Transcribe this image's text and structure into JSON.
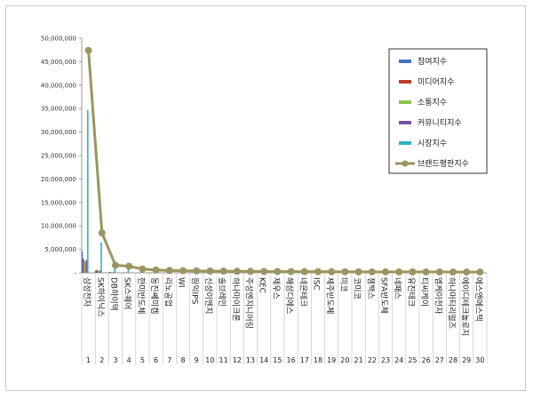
{
  "chart_data": {
    "type": "bar",
    "title": "",
    "xlabel": "",
    "ylabel": "",
    "ylim": [
      0,
      50000000
    ],
    "yticks": [
      0,
      5000000,
      10000000,
      15000000,
      20000000,
      25000000,
      30000000,
      35000000,
      40000000,
      45000000,
      50000000
    ],
    "ytick_labels": [
      "-",
      "5,000,000",
      "10,000,000",
      "15,000,000",
      "20,000,000",
      "25,000,000",
      "30,000,000",
      "35,000,000",
      "40,000,000",
      "45,000,000",
      "50,000,000"
    ],
    "grid": false,
    "legend_position": "right",
    "categories": [
      "삼성전자",
      "SK하이닉스",
      "DB하이텍",
      "SK스퀘어",
      "한미반도체",
      "동진쎄미켐",
      "리노공업",
      "WI",
      "원익IPS",
      "신성이엔지",
      "솔브레인",
      "하나마이크론",
      "주성엔지니어링",
      "KEC",
      "제우스",
      "해성디에스",
      "네온테크",
      "ISC",
      "제주반도체",
      "미코",
      "코미코",
      "젬백스",
      "SFA반도체",
      "네패스",
      "유진테크",
      "티씨케이",
      "엠케이전자",
      "하나머티리얼즈",
      "에이디테크놀로지",
      "에스앤에스텍"
    ],
    "category_numbers": [
      "1",
      "2",
      "3",
      "4",
      "5",
      "6",
      "7",
      "8",
      "9",
      "10",
      "11",
      "12",
      "13",
      "14",
      "15",
      "16",
      "17",
      "18",
      "19",
      "20",
      "21",
      "22",
      "23",
      "24",
      "25",
      "26",
      "27",
      "28",
      "29",
      "30"
    ],
    "series": [
      {
        "name": "참여지수",
        "kind": "bar",
        "color": "#4472c4",
        "values": [
          4600000,
          500000,
          150000,
          80000,
          50000,
          40000,
          30000,
          30000,
          30000,
          20000,
          20000,
          20000,
          20000,
          10000,
          10000,
          10000,
          10000,
          10000,
          10000,
          10000,
          10000,
          10000,
          10000,
          10000,
          10000,
          10000,
          10000,
          10000,
          10000,
          10000
        ]
      },
      {
        "name": "미디어지수",
        "kind": "bar",
        "color": "#c0392b",
        "values": [
          3000000,
          600000,
          200000,
          100000,
          60000,
          50000,
          40000,
          40000,
          40000,
          30000,
          30000,
          30000,
          30000,
          20000,
          20000,
          20000,
          20000,
          20000,
          20000,
          20000,
          20000,
          20000,
          20000,
          20000,
          20000,
          20000,
          20000,
          20000,
          20000,
          20000
        ]
      },
      {
        "name": "소통지수",
        "kind": "bar",
        "color": "#8bc34a",
        "values": [
          2400000,
          400000,
          100000,
          60000,
          40000,
          30000,
          20000,
          20000,
          20000,
          20000,
          20000,
          20000,
          20000,
          10000,
          10000,
          10000,
          10000,
          10000,
          10000,
          10000,
          10000,
          10000,
          10000,
          10000,
          10000,
          10000,
          10000,
          10000,
          10000,
          10000
        ]
      },
      {
        "name": "커뮤니티지수",
        "kind": "bar",
        "color": "#7b4fa0",
        "values": [
          2700000,
          500000,
          150000,
          80000,
          50000,
          40000,
          30000,
          30000,
          30000,
          20000,
          20000,
          20000,
          20000,
          10000,
          10000,
          10000,
          10000,
          10000,
          10000,
          10000,
          10000,
          10000,
          10000,
          10000,
          10000,
          10000,
          10000,
          10000,
          10000,
          10000
        ]
      },
      {
        "name": "시장지수",
        "kind": "bar",
        "color": "#31b0c6",
        "values": [
          34700000,
          6500000,
          900000,
          1000000,
          500000,
          300000,
          250000,
          200000,
          200000,
          150000,
          150000,
          120000,
          120000,
          100000,
          100000,
          90000,
          90000,
          80000,
          80000,
          70000,
          70000,
          70000,
          60000,
          60000,
          60000,
          50000,
          50000,
          50000,
          50000,
          50000
        ]
      },
      {
        "name": "브랜드평판지수",
        "kind": "line",
        "color": "#9c9560",
        "values": [
          47400000,
          8500000,
          1600000,
          1400000,
          800000,
          600000,
          500000,
          450000,
          400000,
          380000,
          350000,
          320000,
          300000,
          280000,
          270000,
          260000,
          250000,
          240000,
          230000,
          220000,
          210000,
          200000,
          200000,
          190000,
          190000,
          180000,
          180000,
          170000,
          170000,
          160000
        ]
      }
    ]
  }
}
